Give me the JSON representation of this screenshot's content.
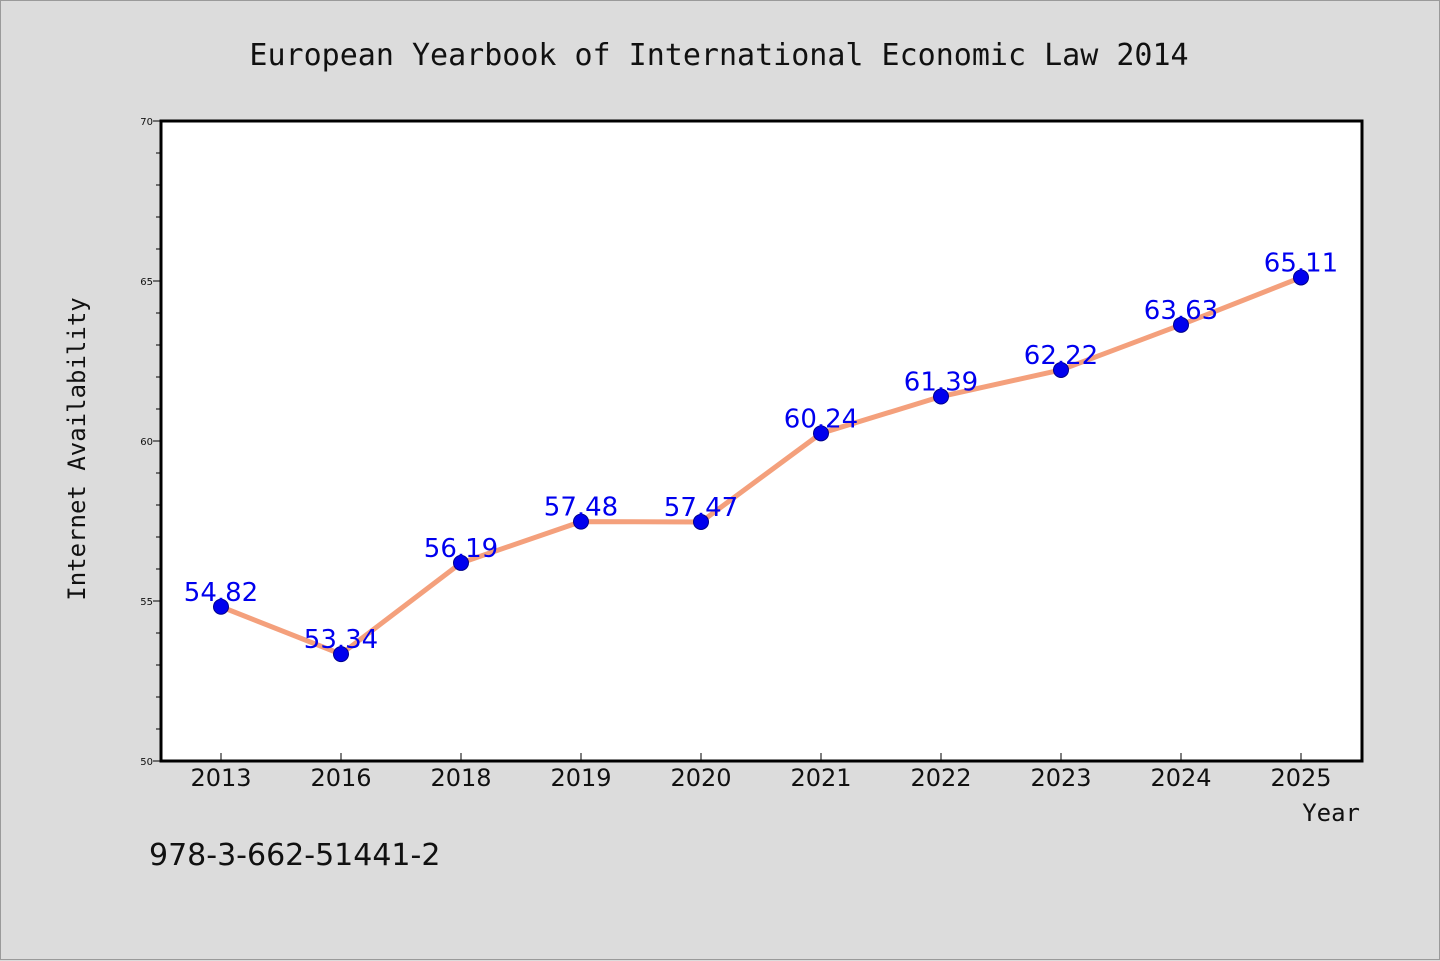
{
  "chart_data": {
    "type": "line",
    "title": "European Yearbook of International Economic Law 2014",
    "xlabel": "Year",
    "ylabel": "Internet Availability",
    "categories": [
      "2013",
      "2016",
      "2018",
      "2019",
      "2020",
      "2021",
      "2022",
      "2023",
      "2024",
      "2025"
    ],
    "series": [
      {
        "values": [
          54.82,
          53.34,
          56.19,
          57.48,
          57.47,
          60.24,
          61.39,
          62.22,
          63.63,
          65.11
        ],
        "labels": [
          "54.82",
          "53.34",
          "56.19",
          "57.48",
          "57.47",
          "60.24",
          "61.39",
          "62.22",
          "63.63",
          "65.11"
        ],
        "line_color": "#f4a07c",
        "marker_color": "#0000ee"
      }
    ],
    "ylim": [
      50,
      70
    ],
    "yticks": [
      "50",
      "55",
      "60",
      "65",
      "70"
    ],
    "grid": false,
    "legend": "none"
  },
  "footer": {
    "isbn": "978-3-662-51441-2"
  },
  "colors": {
    "background": "#dcdcdc",
    "plot_background": "#ffffff"
  }
}
